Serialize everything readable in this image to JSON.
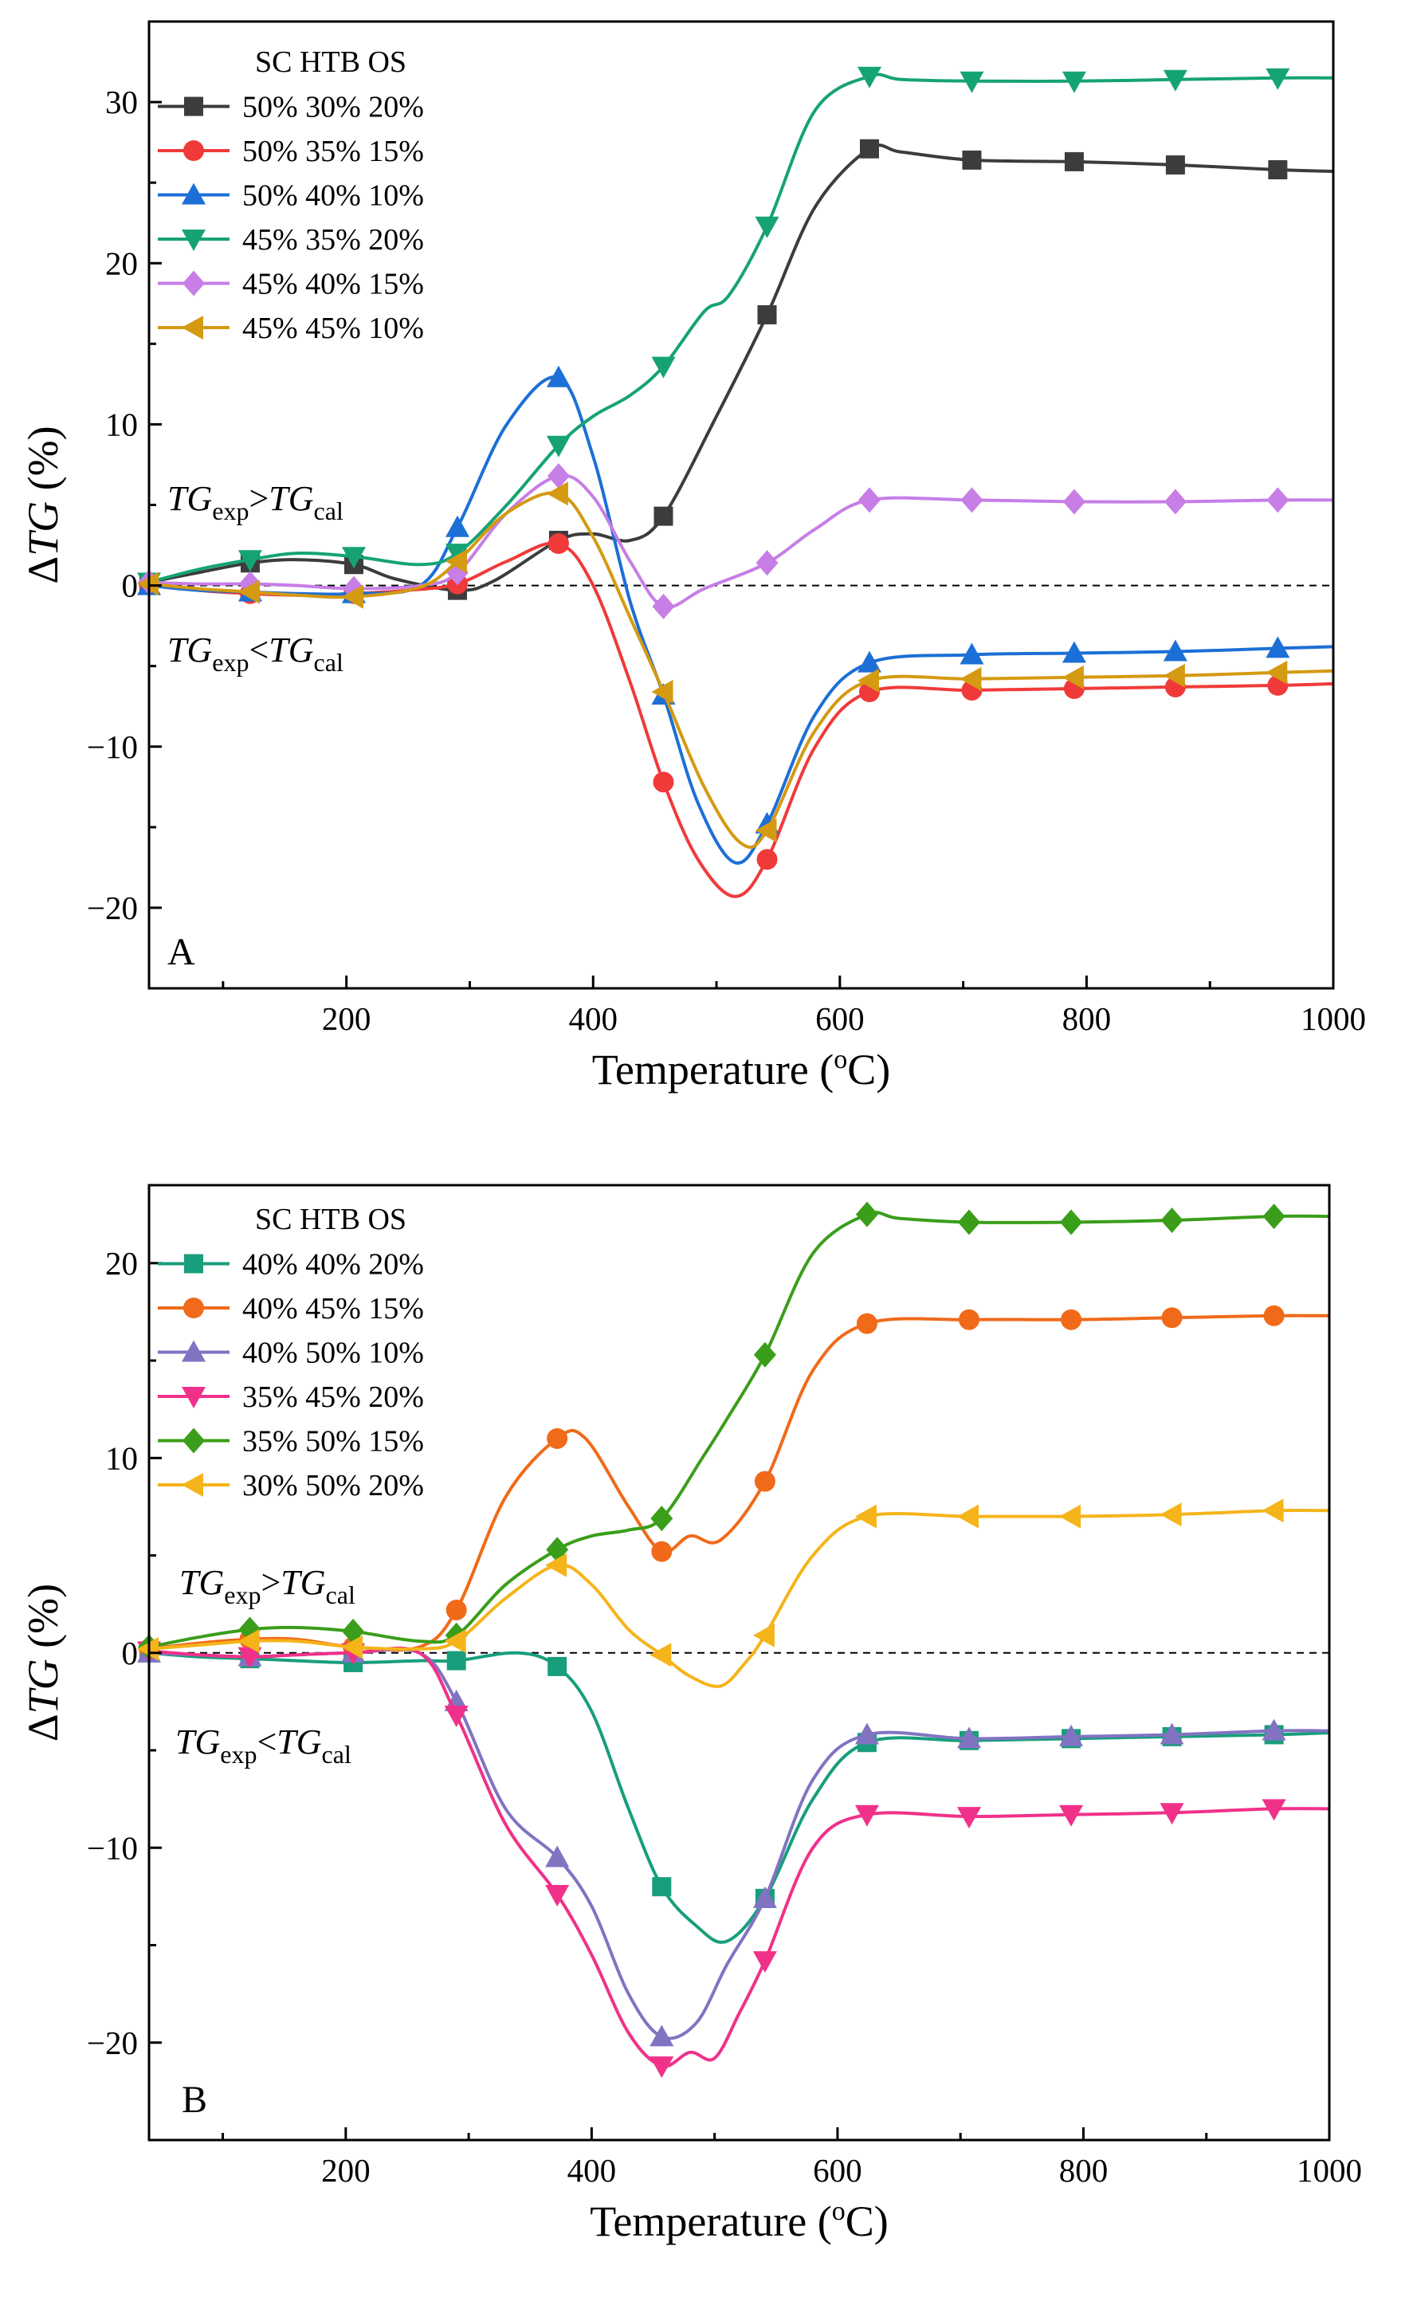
{
  "chart_data": [
    {
      "type": "line",
      "panel_label": "A",
      "xlabel": "Temperature (°C)",
      "xlabel_main": "Temperature (",
      "xlabel_sup": "o",
      "xlabel_end": "C)",
      "ylabel": "ΔTG (%)",
      "ylabel_delta": "Δ",
      "ylabel_italic": "TG",
      "ylabel_rest": " (%)",
      "xlim": [
        40,
        1000
      ],
      "ylim": [
        -25,
        35
      ],
      "x_ticks": [
        200,
        400,
        600,
        800,
        1000
      ],
      "y_ticks": [
        -20,
        -10,
        0,
        10,
        20,
        30
      ],
      "x_tick_labels": [
        "200",
        "400",
        "600",
        "800",
        "1000"
      ],
      "y_tick_labels": [
        "−20",
        "−10",
        "0",
        "10",
        "20",
        "30"
      ],
      "zero_reference_line": true,
      "grid": false,
      "legend_header": "SC  HTB OS",
      "legend_position": "top-left",
      "annotations": [
        {
          "a": "TG",
          "a_sub": "exp",
          "op": ">",
          "b": "TG",
          "b_sub": "cal",
          "region": "above zero"
        },
        {
          "a": "TG",
          "a_sub": "exp",
          "op": "<",
          "b": "TG",
          "b_sub": "cal",
          "region": "below zero"
        }
      ],
      "series": [
        {
          "name": "50% 30% 20%",
          "color": "#3c3c3c",
          "marker": "square",
          "x": [
            40,
            80,
            122,
            160,
            206,
            240,
            290,
            320,
            372,
            400,
            430,
            457,
            500,
            541,
            580,
            624,
            650,
            707,
            790,
            872,
            955,
            1000
          ],
          "y": [
            0.2,
            0.8,
            1.4,
            1.6,
            1.3,
            0.4,
            -0.3,
            0.3,
            2.8,
            3.2,
            2.8,
            4.3,
            10.5,
            16.8,
            23.5,
            27.1,
            26.9,
            26.4,
            26.3,
            26.1,
            25.8,
            25.7
          ]
        },
        {
          "name": "50% 35% 15%",
          "color": "#f03a3a",
          "marker": "circle",
          "x": [
            40,
            80,
            122,
            160,
            206,
            250,
            290,
            330,
            372,
            400,
            430,
            457,
            485,
            515,
            541,
            580,
            624,
            707,
            790,
            872,
            955,
            1000
          ],
          "y": [
            0.1,
            -0.3,
            -0.5,
            -0.6,
            -0.5,
            -0.3,
            0.1,
            1.5,
            2.6,
            0.0,
            -6.0,
            -12.2,
            -17.0,
            -19.3,
            -17.0,
            -10.0,
            -6.6,
            -6.5,
            -6.4,
            -6.3,
            -6.2,
            -6.1
          ]
        },
        {
          "name": "50% 40% 10%",
          "color": "#1c6fd6",
          "marker": "triangle-up",
          "x": [
            40,
            80,
            122,
            160,
            206,
            260,
            290,
            330,
            372,
            400,
            430,
            457,
            485,
            515,
            541,
            580,
            624,
            707,
            790,
            872,
            955,
            1000
          ],
          "y": [
            0.0,
            -0.3,
            -0.4,
            -0.5,
            -0.5,
            0.0,
            3.6,
            10.0,
            12.9,
            8.0,
            -1.0,
            -6.8,
            -13.5,
            -17.2,
            -14.8,
            -8.0,
            -4.8,
            -4.3,
            -4.2,
            -4.1,
            -3.9,
            -3.8
          ]
        },
        {
          "name": "45% 35% 20%",
          "color": "#16a374",
          "marker": "triangle-down",
          "x": [
            40,
            80,
            122,
            160,
            206,
            260,
            290,
            330,
            372,
            400,
            430,
            457,
            490,
            510,
            541,
            580,
            624,
            650,
            707,
            790,
            872,
            955,
            1000
          ],
          "y": [
            0.2,
            1.0,
            1.6,
            2.0,
            1.8,
            1.3,
            2.0,
            5.0,
            8.7,
            10.5,
            11.8,
            13.6,
            17.0,
            18.0,
            22.3,
            29.5,
            31.6,
            31.4,
            31.3,
            31.3,
            31.4,
            31.5,
            31.5
          ]
        },
        {
          "name": "45% 40% 15%",
          "color": "#c77ee6",
          "marker": "diamond",
          "x": [
            40,
            80,
            122,
            160,
            206,
            260,
            290,
            330,
            372,
            400,
            430,
            457,
            490,
            541,
            580,
            624,
            707,
            790,
            872,
            955,
            1000
          ],
          "y": [
            0.2,
            0.1,
            0.1,
            0.0,
            -0.2,
            0.0,
            0.8,
            4.5,
            6.8,
            5.5,
            1.5,
            -1.3,
            -0.2,
            1.4,
            3.5,
            5.3,
            5.3,
            5.2,
            5.2,
            5.3,
            5.3
          ]
        },
        {
          "name": "45% 45% 10%",
          "color": "#d49a12",
          "marker": "triangle-left",
          "x": [
            40,
            80,
            122,
            160,
            206,
            260,
            290,
            330,
            372,
            400,
            430,
            457,
            490,
            520,
            541,
            580,
            624,
            707,
            790,
            872,
            955,
            1000
          ],
          "y": [
            0.1,
            -0.2,
            -0.4,
            -0.6,
            -0.7,
            -0.1,
            1.5,
            4.5,
            5.7,
            3.0,
            -2.0,
            -6.6,
            -12.5,
            -16.0,
            -15.2,
            -9.0,
            -5.9,
            -5.8,
            -5.7,
            -5.6,
            -5.4,
            -5.3
          ]
        }
      ]
    },
    {
      "type": "line",
      "panel_label": "B",
      "xlabel": "Temperature (°C)",
      "xlabel_main": "Temperature (",
      "xlabel_sup": "o",
      "xlabel_end": "C)",
      "ylabel": "ΔTG (%)",
      "ylabel_delta": "Δ",
      "ylabel_italic": "TG",
      "ylabel_rest": " (%)",
      "xlim": [
        40,
        1000
      ],
      "ylim": [
        -25,
        24
      ],
      "x_ticks": [
        200,
        400,
        600,
        800,
        1000
      ],
      "y_ticks": [
        -20,
        -10,
        0,
        10,
        20
      ],
      "x_tick_labels": [
        "200",
        "400",
        "600",
        "800",
        "1000"
      ],
      "y_tick_labels": [
        "−20",
        "−10",
        "0",
        "10",
        "20"
      ],
      "zero_reference_line": true,
      "grid": false,
      "legend_header": "SC  HTB OS",
      "legend_position": "top-left",
      "annotations": [
        {
          "a": "TG",
          "a_sub": "exp",
          "op": ">",
          "b": "TG",
          "b_sub": "cal",
          "region": "above zero"
        },
        {
          "a": "TG",
          "a_sub": "exp",
          "op": "<",
          "b": "TG",
          "b_sub": "cal",
          "region": "below zero"
        }
      ],
      "series": [
        {
          "name": "40% 40% 20%",
          "color": "#189e7c",
          "marker": "square",
          "x": [
            40,
            80,
            122,
            160,
            206,
            260,
            290,
            340,
            372,
            400,
            430,
            457,
            485,
            510,
            541,
            580,
            624,
            707,
            790,
            872,
            955,
            1000
          ],
          "y": [
            0.0,
            -0.2,
            -0.3,
            -0.4,
            -0.5,
            -0.4,
            -0.4,
            0.0,
            -0.7,
            -3.0,
            -8.0,
            -12.0,
            -14.0,
            -14.8,
            -12.6,
            -7.5,
            -4.6,
            -4.5,
            -4.4,
            -4.3,
            -4.2,
            -4.1
          ]
        },
        {
          "name": "40% 45% 15%",
          "color": "#f06a1a",
          "marker": "circle",
          "x": [
            40,
            80,
            122,
            160,
            206,
            260,
            290,
            330,
            372,
            395,
            430,
            457,
            480,
            505,
            541,
            580,
            624,
            707,
            790,
            872,
            955,
            1000
          ],
          "y": [
            0.2,
            0.5,
            0.7,
            0.7,
            0.3,
            0.3,
            2.2,
            8.0,
            11.0,
            11.0,
            7.5,
            5.2,
            6.0,
            5.8,
            8.8,
            14.5,
            16.9,
            17.1,
            17.1,
            17.2,
            17.3,
            17.3
          ]
        },
        {
          "name": "40% 50% 10%",
          "color": "#8273c2",
          "marker": "triangle-up",
          "x": [
            40,
            80,
            122,
            160,
            206,
            260,
            290,
            330,
            372,
            400,
            430,
            457,
            485,
            510,
            541,
            580,
            624,
            707,
            790,
            872,
            955,
            1000
          ],
          "y": [
            0.0,
            -0.1,
            -0.2,
            -0.1,
            0.0,
            0.0,
            -2.5,
            -8.0,
            -10.5,
            -13.0,
            -17.5,
            -19.7,
            -19.0,
            -16.0,
            -12.6,
            -6.5,
            -4.2,
            -4.4,
            -4.3,
            -4.2,
            -4.0,
            -4.0
          ]
        },
        {
          "name": "35% 45% 20%",
          "color": "#f0318a",
          "marker": "triangle-down",
          "x": [
            40,
            80,
            122,
            160,
            206,
            260,
            290,
            330,
            372,
            400,
            430,
            457,
            480,
            500,
            520,
            541,
            580,
            624,
            707,
            790,
            872,
            955,
            1000
          ],
          "y": [
            0.1,
            -0.1,
            -0.2,
            -0.1,
            0.0,
            0.0,
            -3.2,
            -8.8,
            -12.4,
            -15.5,
            -19.5,
            -21.2,
            -20.5,
            -20.8,
            -18.5,
            -15.8,
            -10.0,
            -8.3,
            -8.4,
            -8.3,
            -8.2,
            -8.0,
            -8.0
          ]
        },
        {
          "name": "35% 50% 15%",
          "color": "#3a9e1a",
          "marker": "diamond",
          "x": [
            40,
            80,
            122,
            160,
            206,
            260,
            290,
            330,
            372,
            400,
            430,
            457,
            490,
            510,
            541,
            580,
            624,
            650,
            707,
            790,
            872,
            955,
            1000
          ],
          "y": [
            0.3,
            0.8,
            1.2,
            1.3,
            1.1,
            0.6,
            0.9,
            3.5,
            5.3,
            6.0,
            6.3,
            6.9,
            10.0,
            12.0,
            15.3,
            20.5,
            22.5,
            22.3,
            22.1,
            22.1,
            22.2,
            22.4,
            22.4
          ]
        },
        {
          "name": "30% 50% 20%",
          "color": "#f5b41a",
          "marker": "triangle-left",
          "x": [
            40,
            80,
            122,
            160,
            206,
            260,
            290,
            330,
            372,
            400,
            430,
            457,
            480,
            505,
            525,
            541,
            580,
            624,
            707,
            790,
            872,
            955,
            1000
          ],
          "y": [
            0.2,
            0.4,
            0.6,
            0.6,
            0.3,
            0.2,
            0.6,
            2.8,
            4.5,
            3.5,
            1.2,
            -0.1,
            -1.2,
            -1.7,
            -0.5,
            0.9,
            5.0,
            7.0,
            7.0,
            7.0,
            7.1,
            7.3,
            7.3
          ]
        }
      ]
    }
  ]
}
